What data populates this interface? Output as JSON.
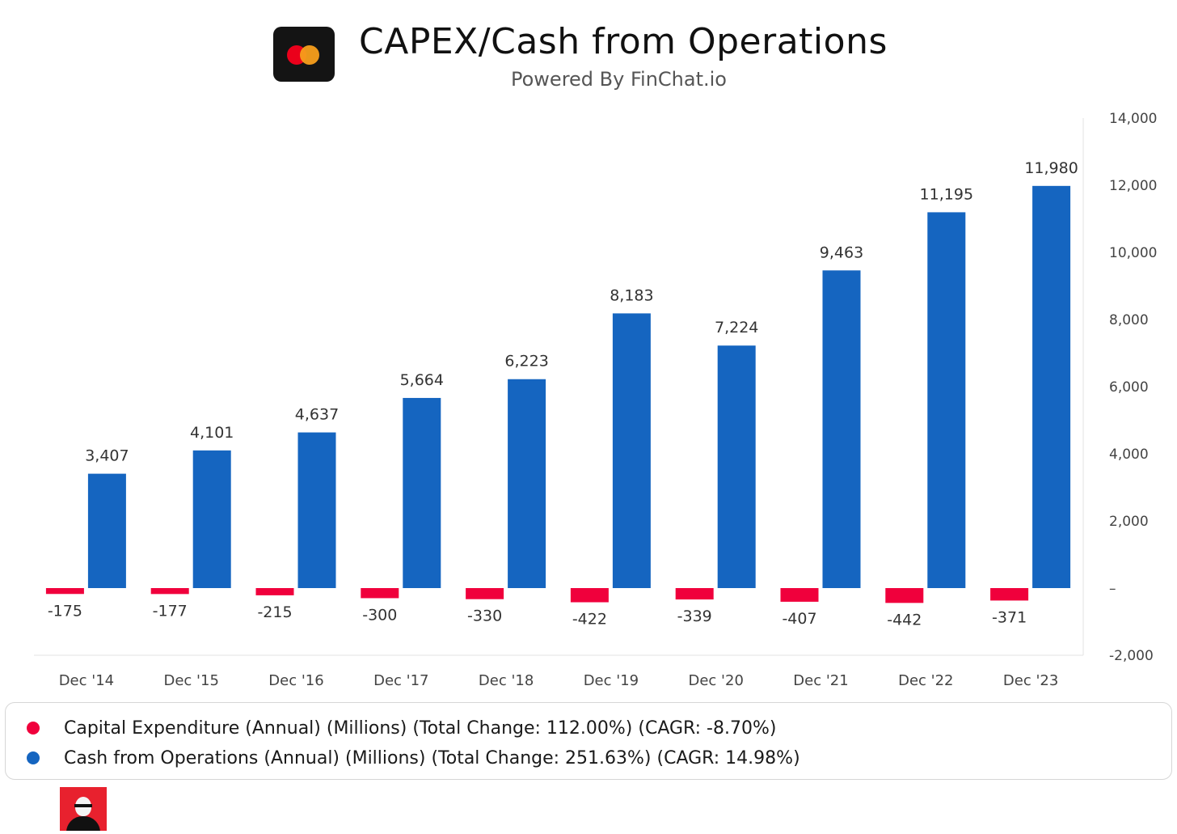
{
  "header": {
    "title": "CAPEX/Cash from Operations",
    "subtitle": "Powered By FinChat.io",
    "logo_icon": "mastercard-logo-icon"
  },
  "legend": {
    "items": [
      {
        "label": "Capital Expenditure (Annual) (Millions) (Total Change: 112.00%) (CAGR: -8.70%)",
        "color": "#f0003c"
      },
      {
        "label": "Cash from Operations (Annual) (Millions) (Total Change: 251.63%) (CAGR: 14.98%)",
        "color": "#1565c0"
      }
    ]
  },
  "footer": {
    "badge_icon": "portrait-badge-icon"
  },
  "chart_data": {
    "type": "bar",
    "categories": [
      "Dec '14",
      "Dec '15",
      "Dec '16",
      "Dec '17",
      "Dec '18",
      "Dec '19",
      "Dec '20",
      "Dec '21",
      "Dec '22",
      "Dec '23"
    ],
    "series": [
      {
        "name": "Capital Expenditure (Annual) (Millions)",
        "color": "#f0003c",
        "values": [
          -175,
          -177,
          -215,
          -300,
          -330,
          -422,
          -339,
          -407,
          -442,
          -371
        ],
        "labels": [
          "-175",
          "-177",
          "-215",
          "-300",
          "-330",
          "-422",
          "-339",
          "-407",
          "-442",
          "-371"
        ]
      },
      {
        "name": "Cash from Operations (Annual) (Millions)",
        "color": "#1565c0",
        "values": [
          3407,
          4101,
          4637,
          5664,
          6223,
          8183,
          7224,
          9463,
          11195,
          11980
        ],
        "labels": [
          "3,407",
          "4,101",
          "4,637",
          "5,664",
          "6,223",
          "8,183",
          "7,224",
          "9,463",
          "11,195",
          "11,980"
        ]
      }
    ],
    "ylim": [
      -2000,
      14000
    ],
    "yticks": [
      -2000,
      0,
      2000,
      4000,
      6000,
      8000,
      10000,
      12000,
      14000
    ],
    "ytick_labels": [
      "-2,000",
      "–",
      "2,000",
      "4,000",
      "6,000",
      "8,000",
      "10,000",
      "12,000",
      "14,000"
    ],
    "y_axis_side": "right",
    "grid": false,
    "legend_position": "bottom"
  }
}
